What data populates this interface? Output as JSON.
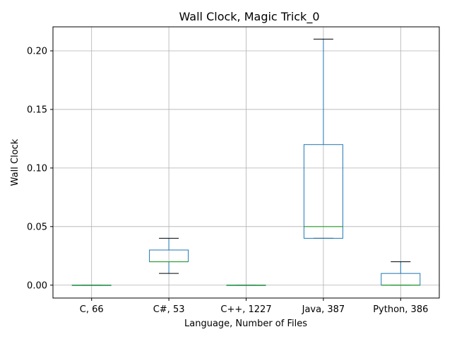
{
  "chart_data": {
    "type": "box",
    "title": "Wall Clock, Magic Trick_0",
    "xlabel": "Language, Number of Files",
    "ylabel": "Wall Clock",
    "ylim": [
      -0.011,
      0.2205
    ],
    "yticks": [
      "0.00",
      "0.05",
      "0.10",
      "0.15",
      "0.20"
    ],
    "ytick_values": [
      0.0,
      0.05,
      0.1,
      0.15,
      0.2
    ],
    "grid": true,
    "categories": [
      "C, 66",
      "C#, 53",
      "C++, 1227",
      "Java, 387",
      "Python, 386"
    ],
    "boxes": [
      {
        "whisker_low": 0.0,
        "q1": 0.0,
        "median": 0.0,
        "q3": 0.0,
        "whisker_high": 0.0
      },
      {
        "whisker_low": 0.01,
        "q1": 0.02,
        "median": 0.02,
        "q3": 0.03,
        "whisker_high": 0.04
      },
      {
        "whisker_low": 0.0,
        "q1": 0.0,
        "median": 0.0,
        "q3": 0.0,
        "whisker_high": 0.0
      },
      {
        "whisker_low": 0.04,
        "q1": 0.04,
        "median": 0.05,
        "q3": 0.12,
        "whisker_high": 0.21
      },
      {
        "whisker_low": 0.0,
        "q1": 0.0,
        "median": 0.0,
        "q3": 0.01,
        "whisker_high": 0.02
      }
    ],
    "colors": {
      "box": "#1f77b4",
      "median": "#2ca02c",
      "cap": "#000000"
    }
  }
}
